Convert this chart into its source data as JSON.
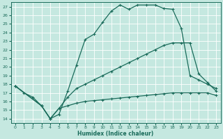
{
  "xlabel": "Humidex (Indice chaleur)",
  "xlim": [
    -0.5,
    23.5
  ],
  "ylim": [
    13.5,
    27.5
  ],
  "xticks": [
    0,
    1,
    2,
    3,
    4,
    5,
    6,
    7,
    8,
    9,
    10,
    11,
    12,
    13,
    14,
    15,
    16,
    17,
    18,
    19,
    20,
    21,
    22,
    23
  ],
  "yticks": [
    14,
    15,
    16,
    17,
    18,
    19,
    20,
    21,
    22,
    23,
    24,
    25,
    26,
    27
  ],
  "bg_color": "#c5e8e0",
  "grid_color": "#b0d8ce",
  "line_color": "#1a6b5a",
  "line1_x": [
    0,
    1,
    2,
    3,
    4,
    5,
    6,
    7,
    8,
    9,
    10,
    11,
    12,
    13,
    14,
    15,
    16,
    17,
    18,
    19,
    20,
    21,
    22,
    23
  ],
  "line1_y": [
    17.8,
    17.0,
    16.5,
    15.5,
    14.0,
    14.5,
    17.2,
    20.2,
    23.2,
    23.8,
    25.2,
    26.5,
    27.2,
    26.7,
    27.2,
    27.2,
    27.2,
    26.8,
    26.7,
    24.5,
    19.0,
    18.5,
    18.0,
    17.5
  ],
  "line2_x": [
    0,
    3,
    4,
    5,
    6,
    7,
    8,
    9,
    10,
    11,
    12,
    13,
    14,
    15,
    16,
    17,
    18,
    19,
    20,
    21,
    22,
    23
  ],
  "line2_y": [
    17.8,
    15.5,
    14.0,
    15.2,
    16.5,
    17.5,
    18.0,
    18.5,
    19.0,
    19.5,
    20.0,
    20.5,
    21.0,
    21.5,
    22.0,
    22.5,
    22.8,
    22.8,
    22.8,
    19.2,
    18.2,
    17.2
  ],
  "line3_x": [
    0,
    3,
    4,
    5,
    6,
    7,
    8,
    9,
    10,
    11,
    12,
    13,
    14,
    15,
    16,
    17,
    18,
    19,
    20,
    21,
    22,
    23
  ],
  "line3_y": [
    17.8,
    15.5,
    14.0,
    15.2,
    15.5,
    15.8,
    16.0,
    16.1,
    16.2,
    16.3,
    16.4,
    16.5,
    16.6,
    16.7,
    16.8,
    16.9,
    17.0,
    17.0,
    17.0,
    17.0,
    17.0,
    16.7
  ]
}
